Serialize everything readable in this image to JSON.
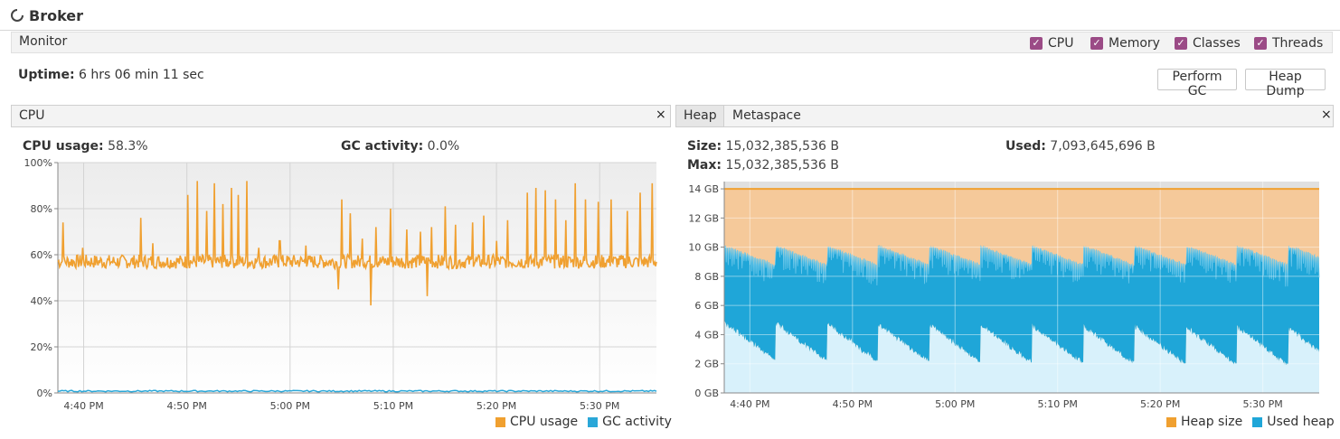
{
  "app": {
    "tab_title": "Broker",
    "tab_icon": "loading-spinner-icon"
  },
  "monitor": {
    "label": "Monitor",
    "checkboxes": [
      {
        "label": "CPU",
        "checked": true
      },
      {
        "label": "Memory",
        "checked": true
      },
      {
        "label": "Classes",
        "checked": true
      },
      {
        "label": "Threads",
        "checked": true
      }
    ],
    "uptime_label": "Uptime:",
    "uptime_value": "6 hrs 06 min 11 sec",
    "perform_gc": "Perform GC",
    "heap_dump": "Heap Dump"
  },
  "cpu_panel": {
    "title": "CPU",
    "close": "×",
    "usage_label": "CPU usage:",
    "usage_value": "58.3%",
    "gc_label": "GC activity:",
    "gc_value": "0.0%",
    "legend": [
      "CPU usage",
      "GC activity"
    ]
  },
  "heap_panel": {
    "tabs": [
      "Heap",
      "Metaspace"
    ],
    "active_tab": "Heap",
    "close": "×",
    "size_label": "Size:",
    "size_value": "15,032,385,536 B",
    "used_label": "Used:",
    "used_value": "7,093,645,696 B",
    "max_label": "Max:",
    "max_value": "15,032,385,536 B",
    "legend": [
      "Heap size",
      "Used heap"
    ]
  },
  "colors": {
    "cpu": "#f0a030",
    "gc": "#2aa7d8",
    "heap_size_fill": "#f5c99a",
    "heap_size_line": "#f0a030",
    "used_heap": "#1fa6d8",
    "used_heap_light": "#d8f1fb",
    "checkbox": "#9b4b86"
  },
  "chart_data": [
    {
      "type": "line",
      "xlabel": "",
      "ylabel": "",
      "x_ticks": [
        "4:40 PM",
        "4:50 PM",
        "5:00 PM",
        "5:10 PM",
        "5:20 PM",
        "5:30 PM"
      ],
      "y_ticks": [
        "0%",
        "20%",
        "40%",
        "60%",
        "80%",
        "100%"
      ],
      "ylim": [
        0,
        100
      ],
      "x_range_minutes": [
        0,
        58
      ],
      "grid": true,
      "series": [
        {
          "name": "CPU usage",
          "baseline": 57,
          "noise": 3,
          "spikes": [
            [
              0.5,
              74
            ],
            [
              2.4,
              63
            ],
            [
              8,
              76
            ],
            [
              9.2,
              65
            ],
            [
              12.6,
              86
            ],
            [
              13.5,
              92
            ],
            [
              14.4,
              79
            ],
            [
              15.2,
              91
            ],
            [
              16,
              82
            ],
            [
              16.8,
              89
            ],
            [
              17.5,
              86
            ],
            [
              18.3,
              92
            ],
            [
              19.5,
              63
            ],
            [
              21.5,
              66
            ],
            [
              24,
              64
            ],
            [
              27.5,
              84
            ],
            [
              28.3,
              78
            ],
            [
              29.5,
              67
            ],
            [
              30.8,
              72
            ],
            [
              32.2,
              80
            ],
            [
              33.8,
              71
            ],
            [
              35.1,
              70
            ],
            [
              36.2,
              72
            ],
            [
              37.5,
              81
            ],
            [
              38.5,
              73
            ],
            [
              40.2,
              74
            ],
            [
              41.3,
              77
            ],
            [
              42.5,
              66
            ],
            [
              43.6,
              75
            ],
            [
              45.5,
              87
            ],
            [
              46.3,
              89
            ],
            [
              47.2,
              88
            ],
            [
              48.2,
              84
            ],
            [
              49.2,
              75
            ],
            [
              50.1,
              91
            ],
            [
              51.1,
              84
            ],
            [
              52.4,
              83
            ],
            [
              53.6,
              84
            ],
            [
              55.2,
              79
            ],
            [
              56.4,
              87
            ],
            [
              57.6,
              91
            ]
          ],
          "dips": [
            [
              27.2,
              45
            ],
            [
              30.3,
              38
            ],
            [
              35.8,
              42
            ]
          ]
        },
        {
          "name": "GC activity",
          "baseline": 0.5
        }
      ]
    },
    {
      "type": "area",
      "xlabel": "",
      "ylabel": "",
      "x_ticks": [
        "4:40 PM",
        "4:50 PM",
        "5:00 PM",
        "5:10 PM",
        "5:20 PM",
        "5:30 PM"
      ],
      "y_ticks": [
        "0 GB",
        "2 GB",
        "4 GB",
        "6 GB",
        "8 GB",
        "10 GB",
        "12 GB",
        "14 GB"
      ],
      "ylim": [
        0,
        14.5
      ],
      "x_range_minutes": [
        0,
        58
      ],
      "grid": true,
      "series": [
        {
          "name": "Heap size",
          "values_gb": 14.0
        },
        {
          "name": "Used heap",
          "min_gb": [
            2.3,
            1.9
          ],
          "max_gb": [
            10.1,
            9.9
          ],
          "gc_cycle_minutes": 5
        }
      ]
    }
  ]
}
